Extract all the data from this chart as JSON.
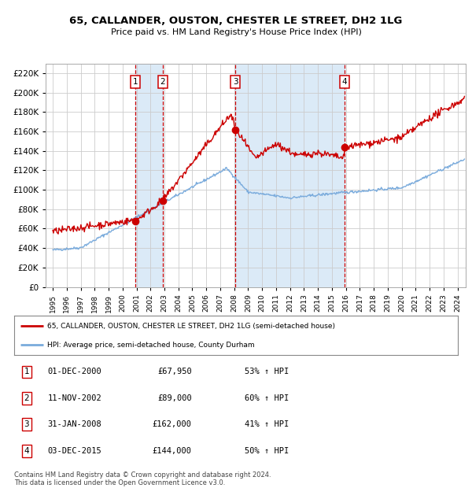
{
  "title": "65, CALLANDER, OUSTON, CHESTER LE STREET, DH2 1LG",
  "subtitle": "Price paid vs. HM Land Registry's House Price Index (HPI)",
  "legend_line1": "65, CALLANDER, OUSTON, CHESTER LE STREET, DH2 1LG (semi-detached house)",
  "legend_line2": "HPI: Average price, semi-detached house, County Durham",
  "footnote1": "Contains HM Land Registry data © Crown copyright and database right 2024.",
  "footnote2": "This data is licensed under the Open Government Licence v3.0.",
  "transactions": [
    {
      "num": 1,
      "date": "01-DEC-2000",
      "price": 67950,
      "price_str": "£67,950",
      "pct": "53%",
      "dir": "↑"
    },
    {
      "num": 2,
      "date": "11-NOV-2002",
      "price": 89000,
      "price_str": "£89,000",
      "pct": "60%",
      "dir": "↑"
    },
    {
      "num": 3,
      "date": "31-JAN-2008",
      "price": 162000,
      "price_str": "£162,000",
      "pct": "41%",
      "dir": "↑"
    },
    {
      "num": 4,
      "date": "03-DEC-2015",
      "price": 144000,
      "price_str": "£144,000",
      "pct": "50%",
      "dir": "↑"
    }
  ],
  "transaction_years": [
    2000.92,
    2002.87,
    2008.08,
    2015.92
  ],
  "transaction_prices": [
    67950,
    89000,
    162000,
    144000
  ],
  "hpi_color": "#7aabdc",
  "price_color": "#cc0000",
  "dot_color": "#cc0000",
  "vline_color": "#cc0000",
  "shade_color": "#dbeaf7",
  "grid_color": "#cccccc",
  "bg_color": "#ffffff",
  "ylim": [
    0,
    230000
  ],
  "yticks": [
    0,
    20000,
    40000,
    60000,
    80000,
    100000,
    120000,
    140000,
    160000,
    180000,
    200000,
    220000
  ],
  "xlabel_years": [
    1995,
    1996,
    1997,
    1998,
    1999,
    2000,
    2001,
    2002,
    2003,
    2004,
    2005,
    2006,
    2007,
    2008,
    2009,
    2010,
    2011,
    2012,
    2013,
    2014,
    2015,
    2016,
    2017,
    2018,
    2019,
    2020,
    2021,
    2022,
    2023,
    2024
  ],
  "xlim": [
    1994.5,
    2024.6
  ]
}
